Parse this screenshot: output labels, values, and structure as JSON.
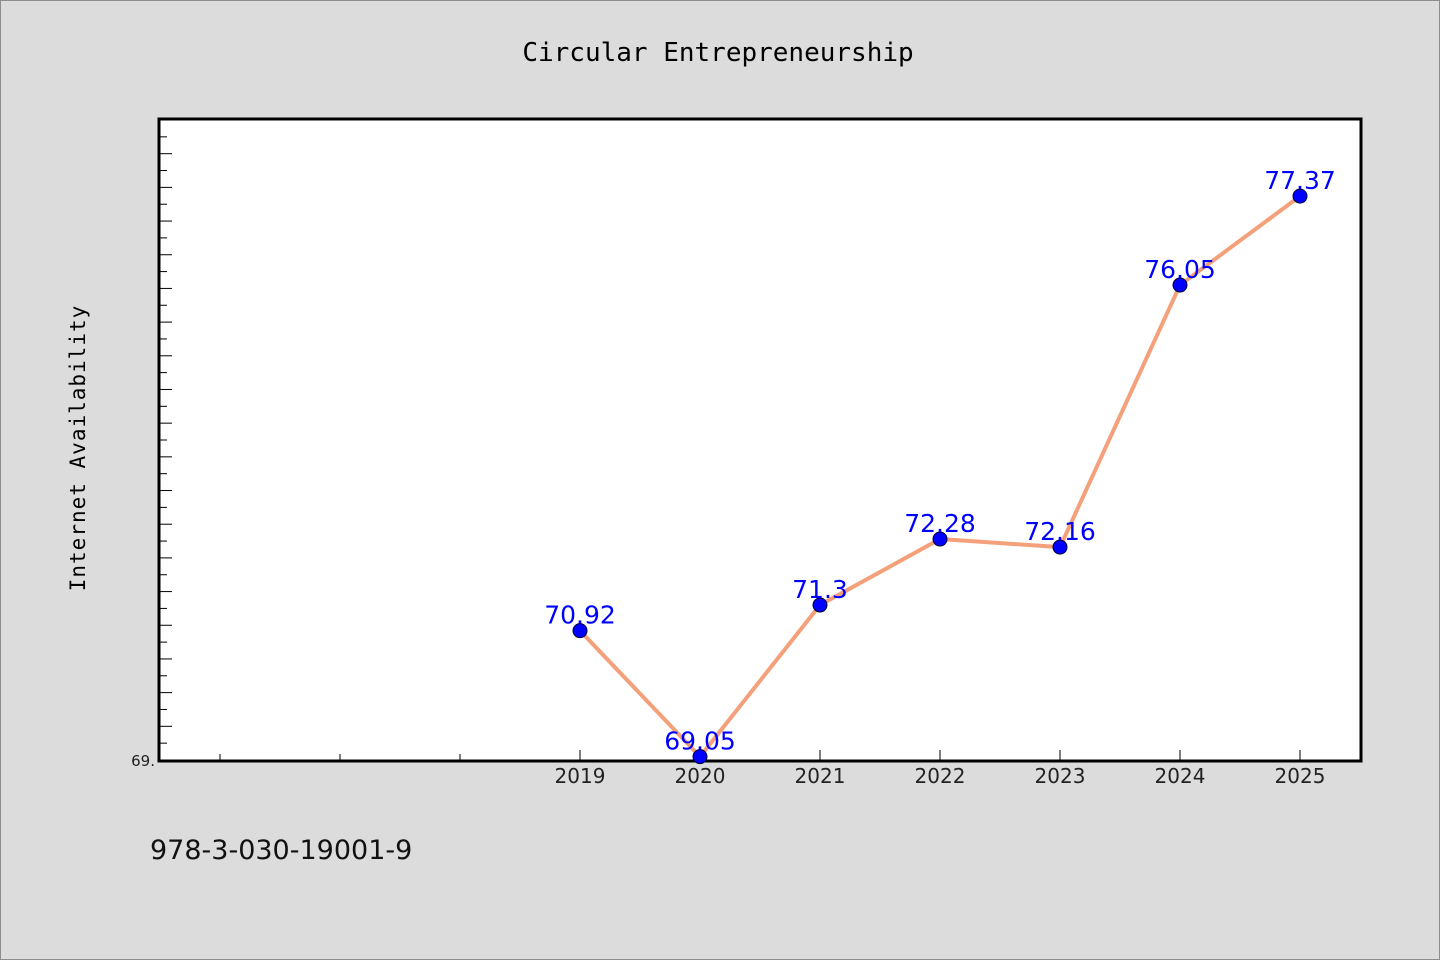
{
  "chart_data": {
    "type": "line",
    "title": "Circular Entrepreneurship",
    "xlabel": "",
    "ylabel": "Internet Availability",
    "categories": [
      "2019",
      "2020",
      "2021",
      "2022",
      "2023",
      "2024",
      "2025"
    ],
    "values": [
      70.92,
      69.05,
      71.3,
      72.28,
      72.16,
      76.05,
      77.37
    ],
    "data_labels": [
      "70.92",
      "69.05",
      "71.3",
      "72.28",
      "72.16",
      "76.05",
      "77.37"
    ],
    "y_min_label": "69.",
    "ylim": [
      69.0,
      78.5
    ],
    "xlim": [
      2015.5,
      2025.5
    ],
    "grid": false,
    "legend": "none",
    "line_color": "#f4a07a",
    "marker_color": "#0000ff",
    "label_color": "#0000ff"
  },
  "footnote": "978-3-030-19001-9"
}
